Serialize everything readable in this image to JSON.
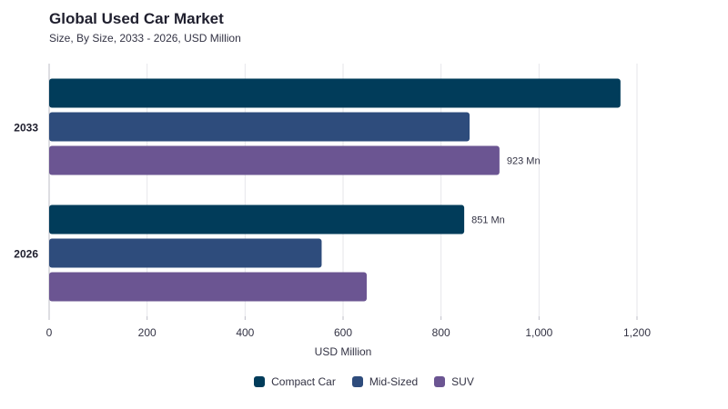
{
  "chart_data": {
    "type": "bar",
    "orientation": "horizontal",
    "title": "Global Used Car Market",
    "subtitle": "Size, By Size, 2033 - 2026, USD Million",
    "categories": [
      "2033",
      "2026"
    ],
    "series": [
      {
        "name": "Compact Car",
        "color": "#013c5a",
        "values": [
          1170,
          851
        ]
      },
      {
        "name": "Mid-Sized",
        "color": "#2e4c7c",
        "values": [
          862,
          560
        ]
      },
      {
        "name": "SUV",
        "color": "#6b5592",
        "values": [
          923,
          652
        ]
      }
    ],
    "data_labels": [
      {
        "category": "2033",
        "series": "SUV",
        "text": "923 Mn"
      },
      {
        "category": "2026",
        "series": "Compact Car",
        "text": "851 Mn"
      }
    ],
    "xlabel": "USD Million",
    "xlim": [
      0,
      1200
    ],
    "xticks": [
      0,
      200,
      400,
      600,
      800,
      1000,
      1200
    ],
    "xtick_labels": [
      "0",
      "200",
      "400",
      "600",
      "800",
      "1,000",
      "1,200"
    ],
    "grid": true,
    "legend_position": "bottom-center"
  }
}
